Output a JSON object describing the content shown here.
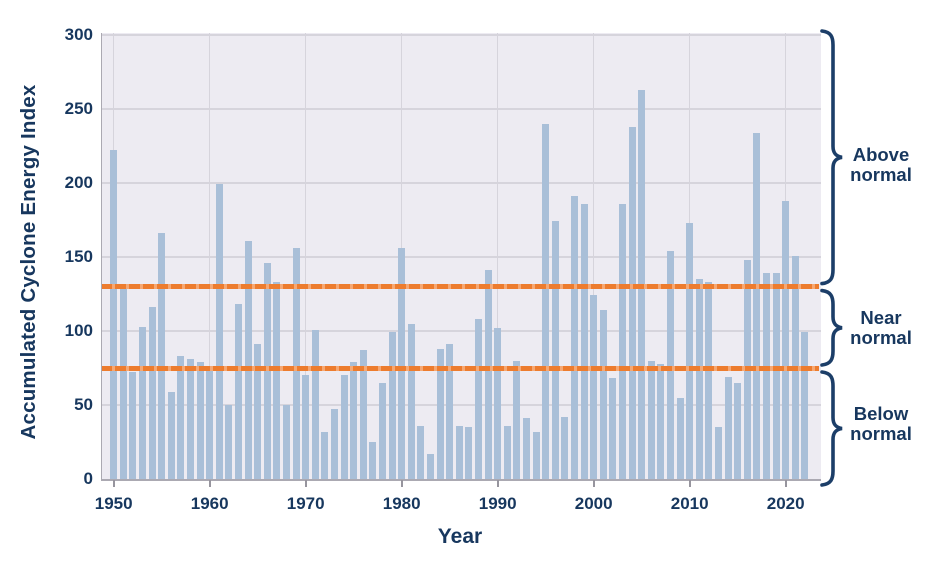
{
  "chart_data": {
    "type": "bar",
    "title": "",
    "xlabel": "Year",
    "ylabel": "Accumulated Cyclone Energy Index",
    "ylim": [
      0,
      300
    ],
    "yticks": [
      0,
      50,
      100,
      150,
      200,
      250,
      300
    ],
    "xticks": [
      1950,
      1960,
      1970,
      1980,
      1990,
      2000,
      2010,
      2020
    ],
    "grid": true,
    "legend_position": "none",
    "years": [
      1950,
      1951,
      1952,
      1953,
      1954,
      1955,
      1956,
      1957,
      1958,
      1959,
      1960,
      1961,
      1962,
      1963,
      1964,
      1965,
      1966,
      1967,
      1968,
      1969,
      1970,
      1971,
      1972,
      1973,
      1974,
      1975,
      1976,
      1977,
      1978,
      1979,
      1980,
      1981,
      1982,
      1983,
      1984,
      1985,
      1986,
      1987,
      1988,
      1989,
      1990,
      1991,
      1992,
      1993,
      1994,
      1995,
      1996,
      1997,
      1998,
      1999,
      2000,
      2001,
      2002,
      2003,
      2004,
      2005,
      2006,
      2007,
      2008,
      2009,
      2010,
      2011,
      2012,
      2013,
      2014,
      2015,
      2016,
      2017,
      2018,
      2019,
      2020,
      2021,
      2022
    ],
    "values": [
      222,
      132,
      72,
      103,
      116,
      166,
      59,
      83,
      81,
      79,
      73,
      199,
      50,
      118,
      161,
      91,
      146,
      133,
      50,
      156,
      70,
      101,
      32,
      47,
      70,
      79,
      87,
      25,
      65,
      99,
      156,
      105,
      36,
      17,
      88,
      91,
      36,
      35,
      108,
      141,
      102,
      36,
      80,
      41,
      32,
      240,
      174,
      42,
      191,
      186,
      124,
      114,
      68,
      186,
      238,
      263,
      80,
      78,
      154,
      55,
      173,
      135,
      133,
      35,
      69,
      65,
      148,
      234,
      139,
      139,
      188,
      151,
      99
    ],
    "thresholds": [
      {
        "value": 130,
        "name": "above-normal-threshold"
      },
      {
        "value": 75,
        "name": "below-normal-threshold"
      }
    ],
    "bands": [
      {
        "label": "Above normal",
        "from": 130,
        "to": 300
      },
      {
        "label": "Near normal",
        "from": 75,
        "to": 130
      },
      {
        "label": "Below normal",
        "from": 0,
        "to": 75
      }
    ],
    "colors": {
      "bar": "#A9BFD8",
      "plot_background": "#EDEBF2",
      "gridline": "#D6D4DC",
      "threshold_orange": "#ED7C2E",
      "threshold_orange_light": "#F6A873",
      "text_navy": "#17375E",
      "brace_navy": "#1C3E68"
    }
  }
}
